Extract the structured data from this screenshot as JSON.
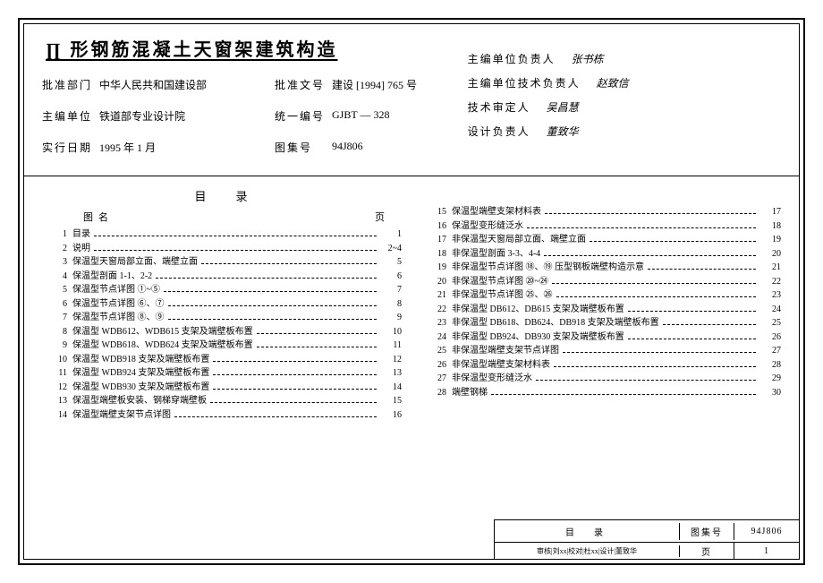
{
  "title": "∏ 形钢筋混凝土天窗架建筑构造",
  "meta": {
    "rows_left": [
      {
        "label": "批准部门",
        "value": "中华人民共和国建设部"
      },
      {
        "label": "主编单位",
        "value": "铁道部专业设计院"
      },
      {
        "label": "实行日期",
        "value": "1995 年 1 月"
      }
    ],
    "rows_right": [
      {
        "label": "批准文号",
        "value": "建设 [1994] 765 号"
      },
      {
        "label": "统一编号",
        "value": "GJBT — 328"
      },
      {
        "label": "图集号",
        "value": "94J806"
      }
    ]
  },
  "signers": [
    {
      "label": "主编单位负责人",
      "sig": "张书栋"
    },
    {
      "label": "主编单位技术负责人",
      "sig": "赵致信"
    },
    {
      "label": "技术审定人",
      "sig": "吴昌慧"
    },
    {
      "label": "设计负责人",
      "sig": "董致华"
    }
  ],
  "catalog_title": "目　录",
  "head_name": "图名",
  "head_page": "页",
  "toc_left": [
    {
      "no": "1",
      "name": "目录",
      "page": "1"
    },
    {
      "no": "2",
      "name": "说明",
      "page": "2~4"
    },
    {
      "no": "3",
      "name": "保温型天窗局部立面、端壁立面",
      "page": "5"
    },
    {
      "no": "4",
      "name": "保温型剖面 1-1、2-2",
      "page": "6"
    },
    {
      "no": "5",
      "name": "保温型节点详图 ①~⑤",
      "page": "7"
    },
    {
      "no": "6",
      "name": "保温型节点详图 ⑥、⑦",
      "page": "8"
    },
    {
      "no": "7",
      "name": "保温型节点详图 ⑧、⑨",
      "page": "9"
    },
    {
      "no": "8",
      "name": "保温型 WDB612、WDB615 支架及端壁板布置",
      "page": "10"
    },
    {
      "no": "9",
      "name": "保温型 WDB618、WDB624 支架及端壁板布置",
      "page": "11"
    },
    {
      "no": "10",
      "name": "保温型 WDB918 支架及端壁板布置",
      "page": "12"
    },
    {
      "no": "11",
      "name": "保温型 WDB924 支架及端壁板布置",
      "page": "13"
    },
    {
      "no": "12",
      "name": "保温型 WDB930 支架及端壁板布置",
      "page": "14"
    },
    {
      "no": "13",
      "name": "保温型端壁板安装、钢梯穿端壁板",
      "page": "15"
    },
    {
      "no": "14",
      "name": "保温型端壁支架节点详图",
      "page": "16"
    }
  ],
  "toc_right": [
    {
      "no": "15",
      "name": "保温型端壁支架材料表",
      "page": "17"
    },
    {
      "no": "16",
      "name": "保温型变形缝泛水",
      "page": "18"
    },
    {
      "no": "17",
      "name": "非保温型天窗局部立面、端壁立面",
      "page": "19"
    },
    {
      "no": "18",
      "name": "非保温型剖面 3-3、4-4",
      "page": "20"
    },
    {
      "no": "19",
      "name": "非保温型节点详图 ⑱、⑲ 压型钢板端壁构造示意",
      "page": "21"
    },
    {
      "no": "20",
      "name": "非保温型节点详图 ⑳~㉔",
      "page": "22"
    },
    {
      "no": "21",
      "name": "非保温型节点详图 ㉕、㉖",
      "page": "23"
    },
    {
      "no": "22",
      "name": "非保温型 DB612、DB615 支架及端壁板布置",
      "page": "24"
    },
    {
      "no": "23",
      "name": "非保温型 DB618、DB624、DB918 支架及端壁板布置",
      "page": "25"
    },
    {
      "no": "24",
      "name": "非保温型 DB924、DB930 支架及端壁板布置",
      "page": "26"
    },
    {
      "no": "25",
      "name": "非保温型端壁支架节点详图",
      "page": "27"
    },
    {
      "no": "26",
      "name": "非保温型端壁支架材料表",
      "page": "28"
    },
    {
      "no": "27",
      "name": "非保温型变形缝泛水",
      "page": "29"
    },
    {
      "no": "28",
      "name": "端壁钢梯",
      "page": "30"
    }
  ],
  "titlebox": {
    "label": "目　录",
    "set_lbl": "图集号",
    "set_val": "94J806",
    "page_lbl": "页",
    "page_val": "1",
    "bottom": "审核|刘xx|校对|杜xx|设计|董致华"
  }
}
